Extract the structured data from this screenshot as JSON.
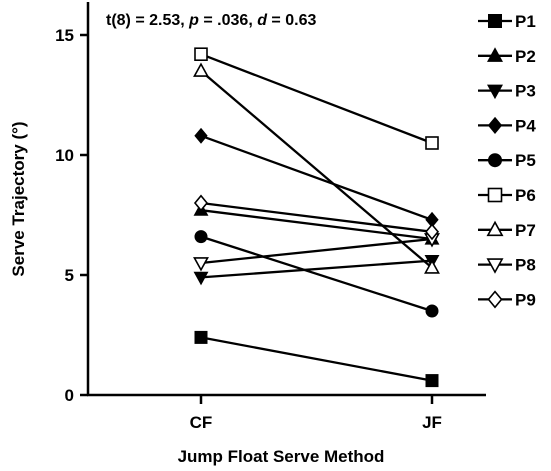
{
  "chart_data": {
    "type": "line",
    "annotation": {
      "prefix": "t(8) = 2.53, ",
      "p_symbol": "p",
      "p_value": " = .036, ",
      "d_symbol": "d",
      "d_value": " = 0.63"
    },
    "xlabel": "Jump Float Serve Method",
    "ylabel": "Serve Trajectory (°)",
    "categories": [
      "CF",
      "JF"
    ],
    "ylim": [
      0,
      16
    ],
    "yticks": [
      0,
      5,
      10,
      15
    ],
    "legend_position": "right",
    "series": [
      {
        "name": "P1",
        "marker": "square-filled",
        "values": [
          2.4,
          0.6
        ]
      },
      {
        "name": "P2",
        "marker": "triangle-up-filled",
        "values": [
          7.7,
          6.5
        ]
      },
      {
        "name": "P3",
        "marker": "triangle-down-filled",
        "values": [
          4.9,
          5.6
        ]
      },
      {
        "name": "P4",
        "marker": "diamond-filled",
        "values": [
          10.8,
          7.3
        ]
      },
      {
        "name": "P5",
        "marker": "circle-filled",
        "values": [
          6.6,
          3.5
        ]
      },
      {
        "name": "P6",
        "marker": "square-open",
        "values": [
          14.2,
          10.5
        ]
      },
      {
        "name": "P7",
        "marker": "triangle-up-open",
        "values": [
          13.5,
          5.3
        ]
      },
      {
        "name": "P8",
        "marker": "triangle-down-open",
        "values": [
          5.5,
          6.5
        ]
      },
      {
        "name": "P9",
        "marker": "diamond-open",
        "values": [
          8.0,
          6.8
        ]
      }
    ]
  }
}
